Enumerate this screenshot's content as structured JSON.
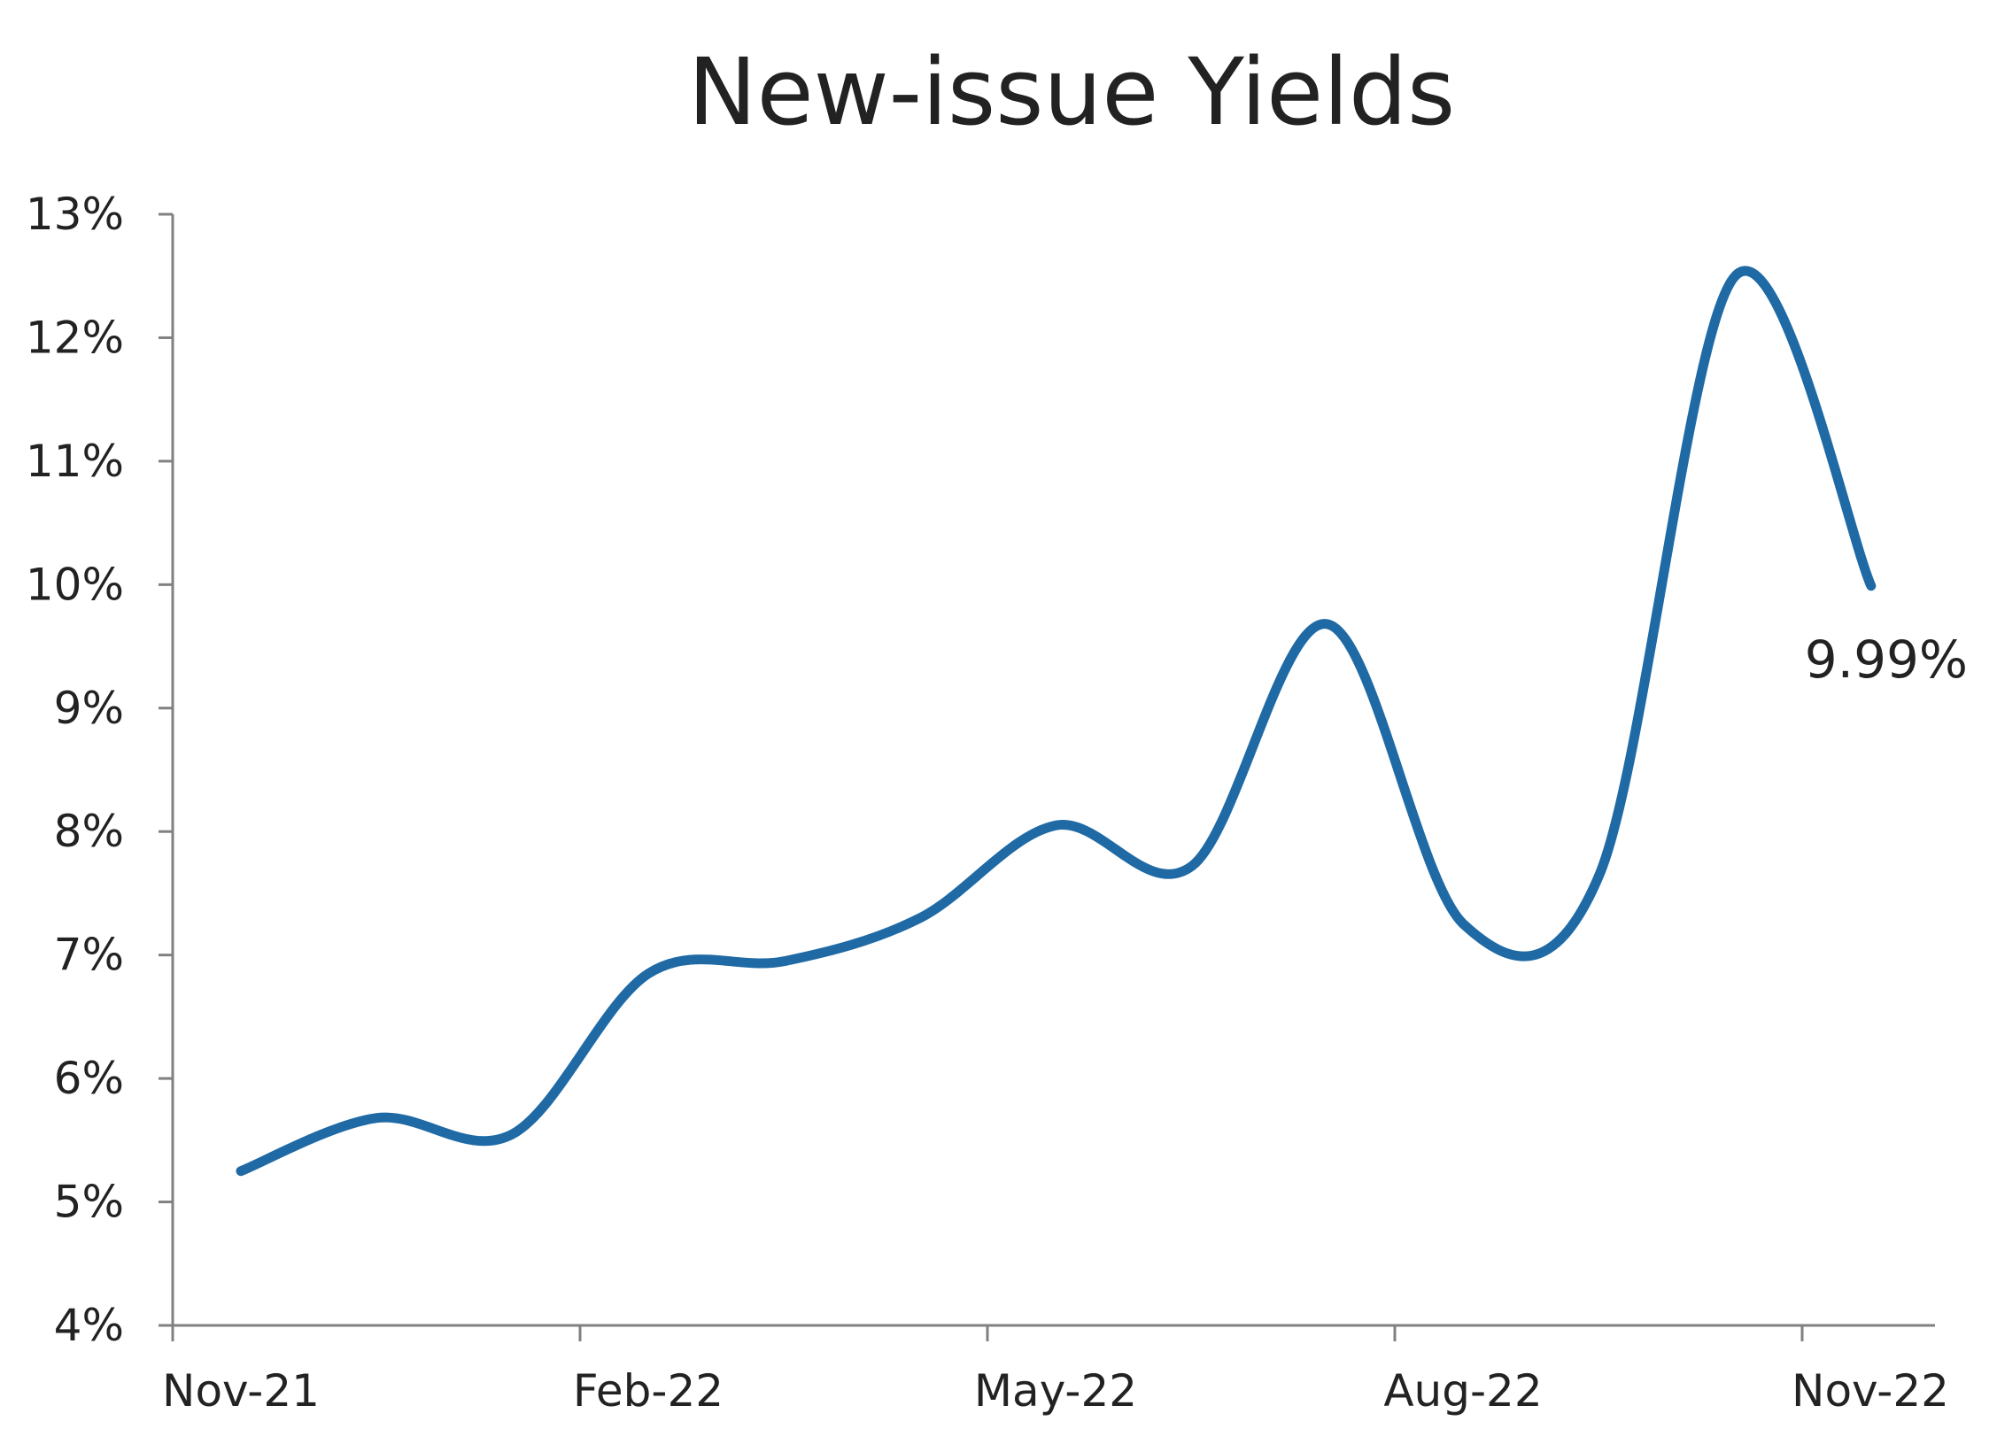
{
  "chart_data": {
    "type": "line",
    "title": "New-issue Yields",
    "xlabel": "",
    "ylabel": "",
    "x_tick_labels": [
      "Nov-21",
      "Feb-22",
      "May-22",
      "Aug-22",
      "Nov-22"
    ],
    "y_tick_labels": [
      "4%",
      "5%",
      "6%",
      "7%",
      "8%",
      "9%",
      "10%",
      "11%",
      "12%",
      "13%"
    ],
    "ylim": [
      4,
      13
    ],
    "y_unit": "%",
    "grid": false,
    "line_color": "#1f6aa5",
    "x": [
      "2021-11",
      "2021-12",
      "2022-01",
      "2022-02",
      "2022-03",
      "2022-04",
      "2022-05",
      "2022-06",
      "2022-07",
      "2022-08",
      "2022-09",
      "2022-10",
      "2022-11"
    ],
    "series": [
      {
        "values": [
          5.25,
          5.68,
          5.55,
          6.85,
          6.95,
          7.3,
          8.05,
          7.72,
          9.68,
          7.25,
          7.65,
          12.5,
          9.99
        ]
      }
    ],
    "annotations": [
      {
        "text": "9.99%",
        "x": "2022-11",
        "y": 9.99
      }
    ]
  }
}
